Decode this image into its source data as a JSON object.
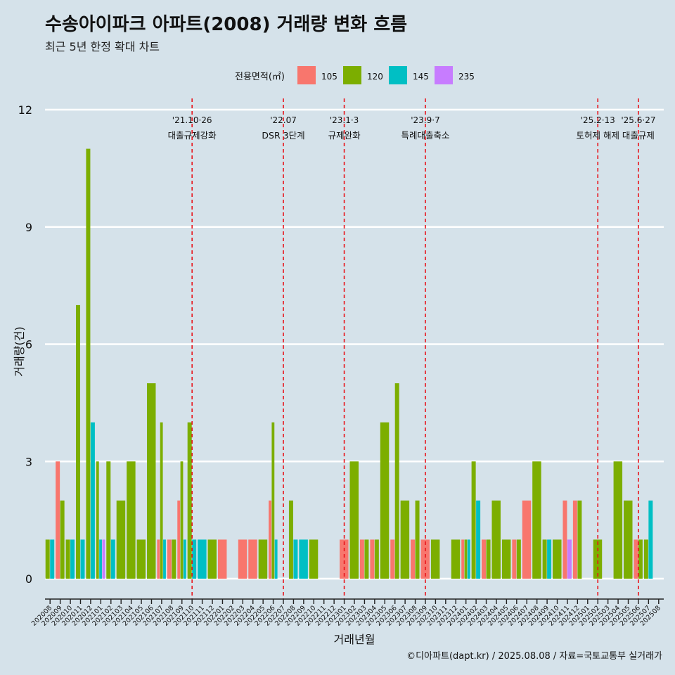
{
  "title": "수송아이파크 아파트(2008) 거래량 변화 흐름",
  "subtitle": "최근 5년 한정 확대 차트",
  "caption": "©디아파트(dapt.kr) / 2025.08.08 / 자료=국토교통부 실거래가",
  "colors": {
    "background": "#d5e2ea",
    "grid": "#ffffff",
    "event_line": "#e8141b",
    "105": "#f8766d",
    "120": "#7cae00",
    "145": "#00bfc4",
    "235": "#c77cff"
  },
  "chart_data": {
    "type": "bar",
    "xlabel": "거래년월",
    "ylabel": "거래량(건)",
    "ylim": [
      0,
      12
    ],
    "yticks": [
      0,
      3,
      6,
      9,
      12
    ],
    "grid": true,
    "legend": {
      "title": "전용면적(㎡)",
      "placement": "top",
      "entries": [
        "105",
        "120",
        "145",
        "235"
      ]
    },
    "categories": [
      "202008",
      "202009",
      "202010",
      "202011",
      "202012",
      "202101",
      "202102",
      "202103",
      "202104",
      "202105",
      "202106",
      "202107",
      "202108",
      "202109",
      "202110",
      "202111",
      "202112",
      "202201",
      "202202",
      "202203",
      "202204",
      "202205",
      "202206",
      "202207",
      "202208",
      "202209",
      "202210",
      "202211",
      "202212",
      "202301",
      "202302",
      "202303",
      "202304",
      "202305",
      "202306",
      "202307",
      "202308",
      "202309",
      "202310",
      "202311",
      "202312",
      "202401",
      "202402",
      "202403",
      "202404",
      "202405",
      "202406",
      "202407",
      "202408",
      "202409",
      "202410",
      "202411",
      "202412",
      "202501",
      "202502",
      "202503",
      "202504",
      "202505",
      "202506",
      "202507",
      "202508"
    ],
    "series": [
      {
        "name": "105",
        "values": [
          0,
          3,
          0,
          0,
          0,
          0,
          0,
          0,
          0,
          0,
          0,
          1,
          1,
          2,
          0,
          0,
          0,
          1,
          0,
          1,
          1,
          0,
          2,
          0,
          0,
          0,
          0,
          0,
          0,
          1,
          0,
          1,
          1,
          0,
          1,
          0,
          1,
          1,
          0,
          0,
          0,
          1,
          0,
          1,
          0,
          0,
          1,
          2,
          0,
          0,
          0,
          2,
          2,
          0,
          0,
          0,
          0,
          0,
          1,
          0,
          0
        ]
      },
      {
        "name": "120",
        "values": [
          1,
          2,
          1,
          7,
          11,
          3,
          3,
          2,
          3,
          1,
          5,
          4,
          1,
          3,
          4,
          0,
          1,
          0,
          0,
          0,
          0,
          1,
          4,
          0,
          2,
          0,
          1,
          0,
          0,
          0,
          3,
          1,
          1,
          4,
          5,
          2,
          2,
          0,
          1,
          0,
          1,
          1,
          3,
          1,
          2,
          1,
          1,
          0,
          3,
          1,
          1,
          0,
          2,
          0,
          1,
          0,
          3,
          2,
          1,
          1,
          0
        ]
      },
      {
        "name": "145",
        "values": [
          1,
          0,
          1,
          1,
          4,
          1,
          1,
          0,
          0,
          0,
          0,
          1,
          0,
          1,
          1,
          1,
          0,
          0,
          0,
          0,
          0,
          0,
          1,
          0,
          1,
          1,
          0,
          0,
          0,
          0,
          0,
          0,
          0,
          0,
          0,
          0,
          0,
          0,
          0,
          0,
          0,
          1,
          2,
          0,
          0,
          0,
          0,
          0,
          0,
          1,
          0,
          0,
          0,
          0,
          0,
          0,
          0,
          0,
          0,
          2,
          0
        ]
      },
      {
        "name": "235",
        "values": [
          0,
          0,
          0,
          0,
          0,
          1,
          0,
          0,
          0,
          0,
          0,
          0,
          0,
          0,
          0,
          0,
          0,
          0,
          0,
          0,
          0,
          0,
          0,
          0,
          0,
          0,
          0,
          0,
          0,
          0,
          0,
          0,
          0,
          0,
          0,
          0,
          0,
          0,
          0,
          0,
          0,
          0,
          0,
          0,
          0,
          0,
          0,
          0,
          0,
          0,
          0,
          1,
          0,
          0,
          0,
          0,
          0,
          0,
          0,
          0,
          0
        ]
      }
    ],
    "events": [
      {
        "x": "202110",
        "date": "'21.10·26",
        "label": "대출규제강화"
      },
      {
        "x": "202207",
        "date": "'22.07",
        "label": "DSR 3단계"
      },
      {
        "x": "202301",
        "date": "'23.1·3",
        "label": "규제완화"
      },
      {
        "x": "202309",
        "date": "'23.9·7",
        "label": "특례대출축소"
      },
      {
        "x": "202502",
        "date": "'25.2·13",
        "label": "토허제 해제"
      },
      {
        "x": "202506",
        "date": "'25.6·27",
        "label": "대출규제"
      }
    ]
  }
}
